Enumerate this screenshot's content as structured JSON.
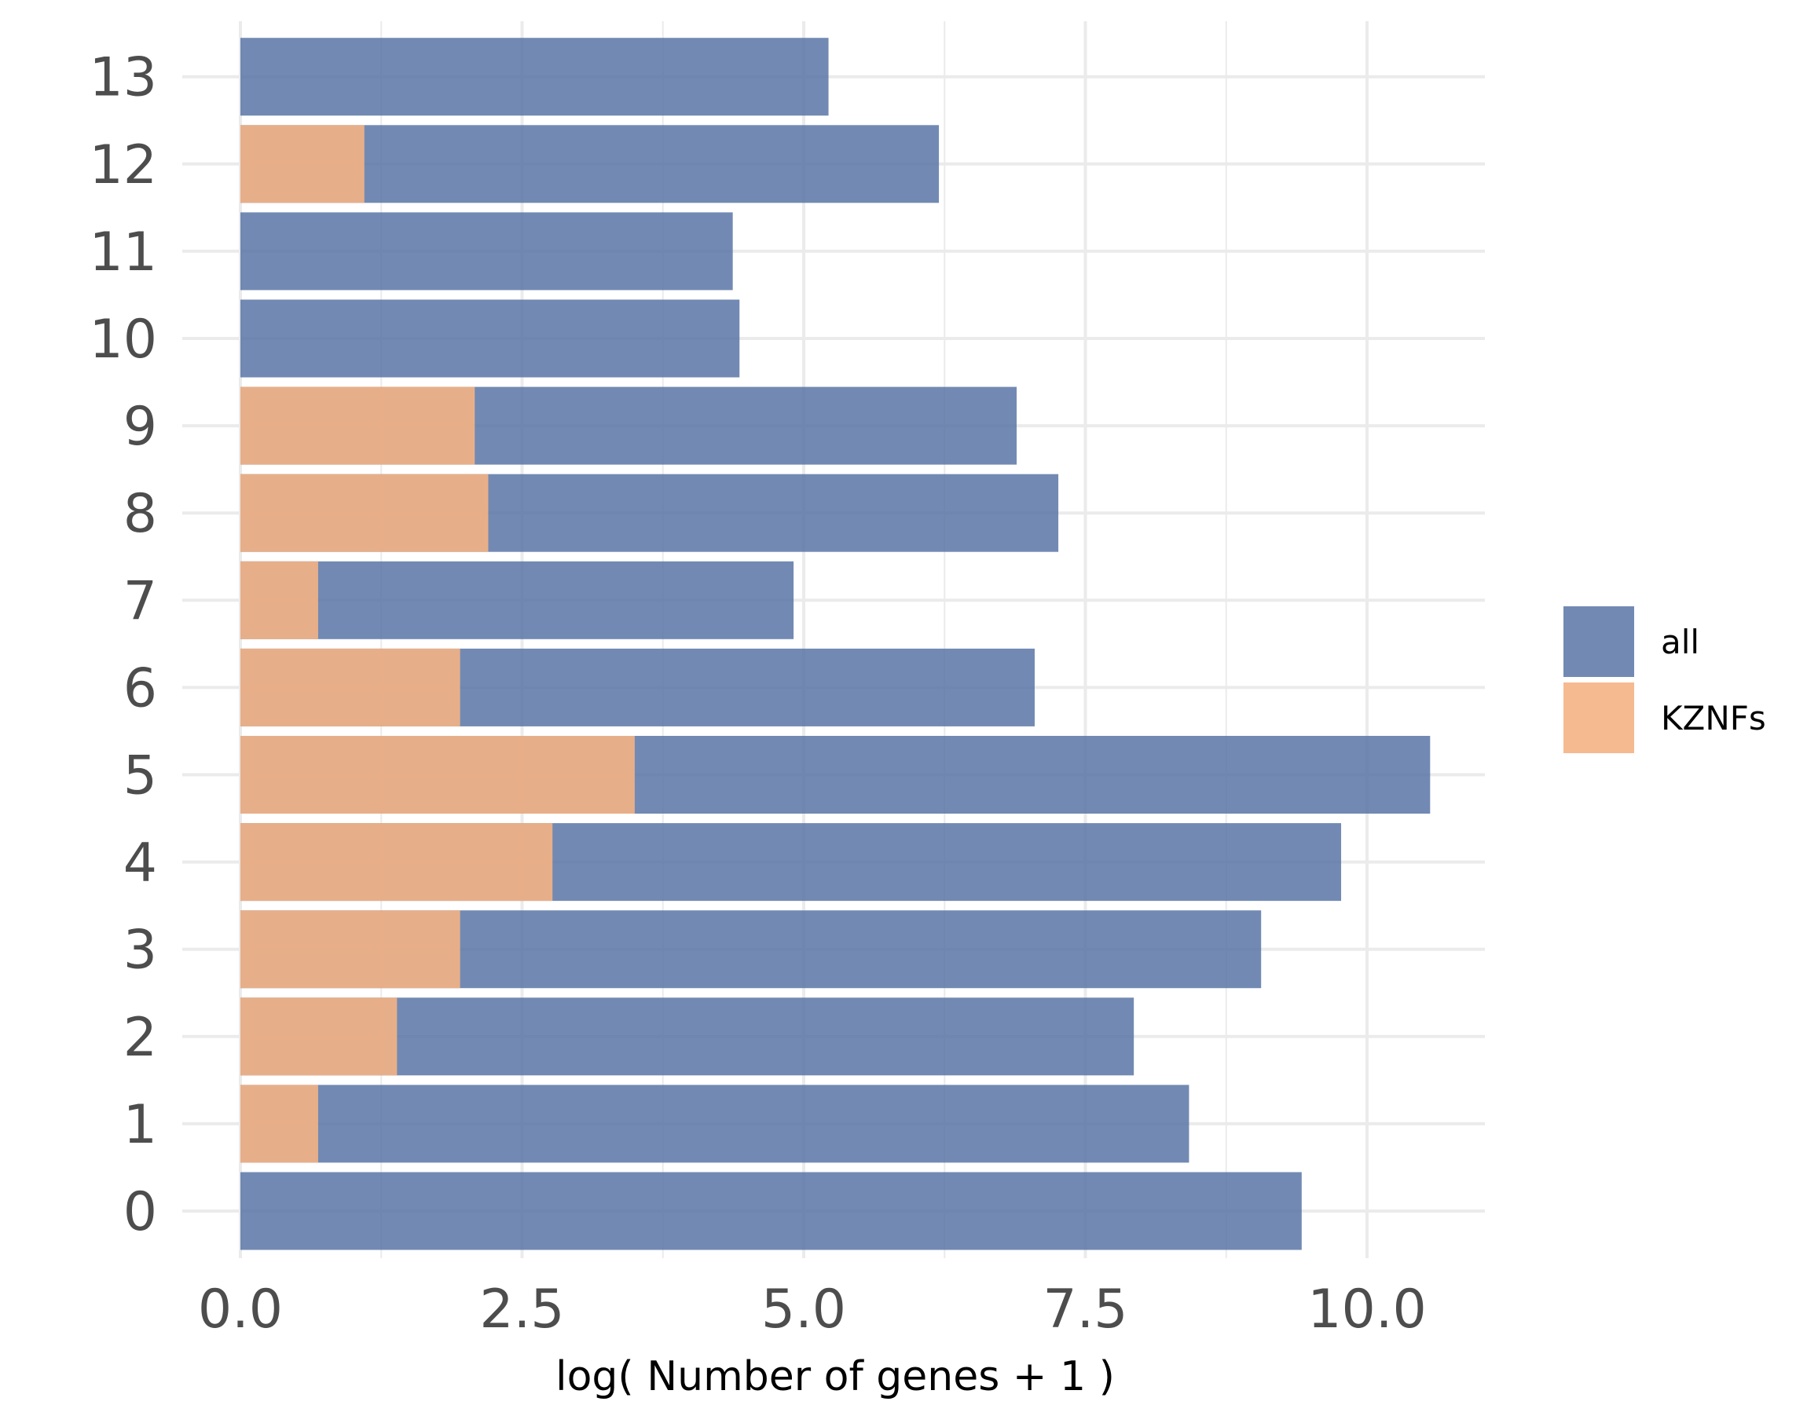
{
  "chart_data": {
    "type": "bar",
    "orientation": "horizontal",
    "xlabel": "log( Number of genes + 1 )",
    "ylabel": "",
    "title": "",
    "xlim": [
      0,
      10.6
    ],
    "x_ticks": [
      "0.0",
      "2.5",
      "5.0",
      "7.5",
      "10.0"
    ],
    "categories": [
      "0",
      "1",
      "2",
      "3",
      "4",
      "5",
      "6",
      "7",
      "8",
      "9",
      "10",
      "11",
      "12",
      "13"
    ],
    "series": [
      {
        "name": "all",
        "color": "#5b77a6",
        "values": [
          9.42,
          8.42,
          7.93,
          9.06,
          9.77,
          10.56,
          7.05,
          4.91,
          7.26,
          6.89,
          4.43,
          4.37,
          6.2,
          5.22
        ]
      },
      {
        "name": "KZNFs",
        "color": "#f4b384",
        "values": [
          0,
          0.69,
          1.39,
          1.95,
          2.77,
          3.5,
          1.95,
          0.69,
          2.2,
          2.08,
          0,
          0,
          1.1,
          0
        ]
      }
    ],
    "grid": true,
    "legend_position": "right"
  }
}
